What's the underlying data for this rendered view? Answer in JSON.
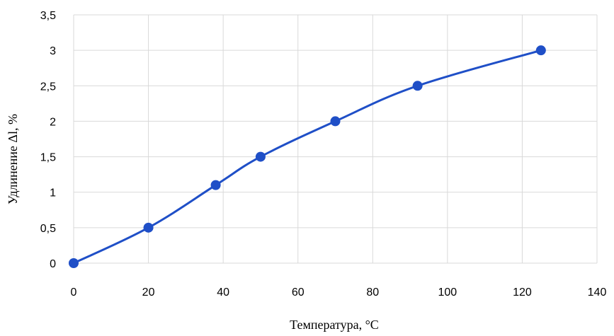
{
  "chart_data": {
    "type": "line",
    "title": "",
    "xlabel": "Температура, °C",
    "ylabel": "Удлинение Δl, %",
    "xlim": [
      0,
      140
    ],
    "ylim": [
      0,
      3.5
    ],
    "x_ticks": [
      "0",
      "20",
      "40",
      "60",
      "80",
      "100",
      "120",
      "140"
    ],
    "y_ticks": [
      "0",
      "0,5",
      "1",
      "1,5",
      "2",
      "2,5",
      "3",
      "3,5"
    ],
    "grid": true,
    "smooth": true,
    "series": [
      {
        "color": "#1f4fc7",
        "x": [
          0,
          20,
          38,
          50,
          70,
          92,
          125
        ],
        "y": [
          0,
          0.5,
          1.1,
          1.5,
          2.0,
          2.5,
          3.0
        ]
      }
    ]
  }
}
